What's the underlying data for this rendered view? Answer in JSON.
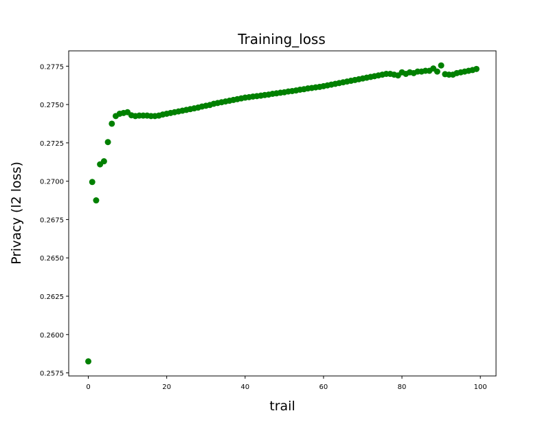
{
  "chart_data": {
    "type": "scatter",
    "title": "Training_loss",
    "xlabel": "trail",
    "ylabel": "Privacy (l2 loss)",
    "xlim": [
      -5,
      104
    ],
    "ylim": [
      0.2573,
      0.2785
    ],
    "xticks": [
      0,
      20,
      40,
      60,
      80,
      100
    ],
    "xtick_labels": [
      "0",
      "20",
      "40",
      "60",
      "80",
      "100"
    ],
    "yticks": [
      0.2575,
      0.26,
      0.2625,
      0.265,
      0.2675,
      0.27,
      0.2725,
      0.275,
      0.2775
    ],
    "ytick_labels": [
      "0.2575",
      "0.2600",
      "0.2625",
      "0.2650",
      "0.2675",
      "0.2700",
      "0.2725",
      "0.2750",
      "0.2775"
    ],
    "grid": false,
    "legend": "none",
    "marker_color": "#008000",
    "series": [
      {
        "x": [
          0,
          1,
          2,
          3,
          4,
          5,
          6,
          7,
          8,
          9,
          10,
          11,
          12,
          13,
          14,
          15,
          16,
          17,
          18,
          19,
          20,
          21,
          22,
          23,
          24,
          25,
          26,
          27,
          28,
          29,
          30,
          31,
          32,
          33,
          34,
          35,
          36,
          37,
          38,
          39,
          40,
          41,
          42,
          43,
          44,
          45,
          46,
          47,
          48,
          49,
          50,
          51,
          52,
          53,
          54,
          55,
          56,
          57,
          58,
          59,
          60,
          61,
          62,
          63,
          64,
          65,
          66,
          67,
          68,
          69,
          70,
          71,
          72,
          73,
          74,
          75,
          76,
          77,
          78,
          79,
          80,
          81,
          82,
          83,
          84,
          85,
          86,
          87,
          88,
          89,
          90,
          91,
          92,
          93,
          94,
          95,
          96,
          97,
          98,
          99
        ],
        "y": [
          0.25825,
          0.26995,
          0.26875,
          0.2711,
          0.2713,
          0.27255,
          0.27375,
          0.27425,
          0.2744,
          0.27445,
          0.2745,
          0.2743,
          0.27425,
          0.27428,
          0.27428,
          0.27428,
          0.27425,
          0.27425,
          0.27428,
          0.27435,
          0.2744,
          0.27445,
          0.2745,
          0.27455,
          0.2746,
          0.27465,
          0.2747,
          0.27475,
          0.2748,
          0.27487,
          0.27492,
          0.27497,
          0.27505,
          0.2751,
          0.27515,
          0.2752,
          0.27525,
          0.2753,
          0.27535,
          0.2754,
          0.27545,
          0.27548,
          0.27552,
          0.27555,
          0.27558,
          0.27562,
          0.27565,
          0.2757,
          0.27573,
          0.27577,
          0.2758,
          0.27585,
          0.27588,
          0.27592,
          0.27597,
          0.276,
          0.27605,
          0.27608,
          0.27612,
          0.27615,
          0.2762,
          0.27625,
          0.2763,
          0.27635,
          0.2764,
          0.27645,
          0.2765,
          0.27655,
          0.2766,
          0.27665,
          0.2767,
          0.27675,
          0.2768,
          0.27685,
          0.2769,
          0.27695,
          0.277,
          0.277,
          0.27695,
          0.2769,
          0.2771,
          0.277,
          0.2771,
          0.27705,
          0.27715,
          0.27715,
          0.2772,
          0.2772,
          0.27735,
          0.27715,
          0.27755,
          0.27698,
          0.27695,
          0.27695,
          0.27705,
          0.2771,
          0.27715,
          0.2772,
          0.27725,
          0.27732
        ]
      }
    ]
  }
}
